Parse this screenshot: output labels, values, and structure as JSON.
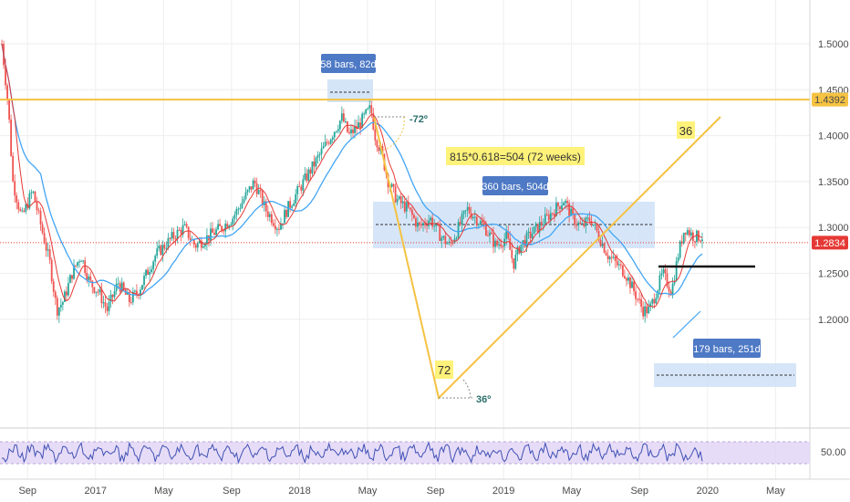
{
  "chart_data": {
    "type": "candlestick",
    "title": "",
    "xlabel": "",
    "ylabel": "",
    "grid": true,
    "x_tick_labels": [
      "Sep",
      "2017",
      "May",
      "Sep",
      "2018",
      "May",
      "Sep",
      "2019",
      "May",
      "Sep",
      "2020",
      "May"
    ],
    "y_ticks": [
      1.2,
      1.25,
      1.3,
      1.35,
      1.4,
      1.45,
      1.5
    ],
    "y_tick_labels": [
      "1.2000",
      "1.2500",
      "1.3000",
      "1.3500",
      "1.4000",
      "1.4500",
      "1.5000"
    ],
    "ylim": [
      1.165,
      1.535
    ],
    "price_path": [
      [
        0.0,
        1.5
      ],
      [
        0.3,
        1.43
      ],
      [
        0.5,
        1.35
      ],
      [
        0.9,
        1.31
      ],
      [
        1.4,
        1.34
      ],
      [
        1.8,
        1.3
      ],
      [
        2.2,
        1.26
      ],
      [
        2.5,
        1.21
      ],
      [
        2.8,
        1.22
      ],
      [
        3.2,
        1.25
      ],
      [
        3.6,
        1.27
      ],
      [
        4.0,
        1.24
      ],
      [
        4.4,
        1.23
      ],
      [
        4.8,
        1.21
      ],
      [
        5.3,
        1.24
      ],
      [
        5.8,
        1.22
      ],
      [
        6.2,
        1.23
      ],
      [
        6.6,
        1.25
      ],
      [
        7.0,
        1.27
      ],
      [
        7.4,
        1.28
      ],
      [
        7.8,
        1.29
      ],
      [
        8.3,
        1.3
      ],
      [
        8.8,
        1.28
      ],
      [
        9.4,
        1.29
      ],
      [
        10.0,
        1.3
      ],
      [
        10.5,
        1.31
      ],
      [
        11.0,
        1.33
      ],
      [
        11.5,
        1.35
      ],
      [
        12.0,
        1.32
      ],
      [
        12.6,
        1.3
      ],
      [
        13.0,
        1.32
      ],
      [
        13.5,
        1.34
      ],
      [
        14.0,
        1.36
      ],
      [
        14.5,
        1.38
      ],
      [
        15.0,
        1.4
      ],
      [
        15.5,
        1.42
      ],
      [
        15.8,
        1.4
      ],
      [
        16.2,
        1.41
      ],
      [
        16.5,
        1.42
      ],
      [
        16.8,
        1.43
      ],
      [
        17.0,
        1.4
      ],
      [
        17.3,
        1.38
      ],
      [
        17.6,
        1.35
      ],
      [
        18.0,
        1.33
      ],
      [
        18.5,
        1.32
      ],
      [
        19.0,
        1.3
      ],
      [
        19.5,
        1.31
      ],
      [
        20.0,
        1.29
      ],
      [
        20.4,
        1.28
      ],
      [
        20.8,
        1.3
      ],
      [
        21.2,
        1.32
      ],
      [
        21.6,
        1.31
      ],
      [
        22.0,
        1.3
      ],
      [
        22.5,
        1.28
      ],
      [
        23.0,
        1.29
      ],
      [
        23.3,
        1.26
      ],
      [
        23.6,
        1.28
      ],
      [
        24.0,
        1.29
      ],
      [
        24.4,
        1.3
      ],
      [
        24.8,
        1.31
      ],
      [
        25.2,
        1.32
      ],
      [
        25.6,
        1.33
      ],
      [
        26.0,
        1.31
      ],
      [
        26.4,
        1.3
      ],
      [
        26.8,
        1.31
      ],
      [
        27.2,
        1.29
      ],
      [
        27.6,
        1.27
      ],
      [
        28.0,
        1.26
      ],
      [
        28.4,
        1.25
      ],
      [
        28.8,
        1.23
      ],
      [
        29.2,
        1.21
      ],
      [
        29.5,
        1.21
      ],
      [
        29.8,
        1.23
      ],
      [
        30.1,
        1.25
      ],
      [
        30.5,
        1.23
      ],
      [
        30.8,
        1.27
      ],
      [
        31.1,
        1.3
      ],
      [
        31.5,
        1.29
      ],
      [
        31.9,
        1.29
      ]
    ],
    "current_price": 1.2834,
    "current_price_label": "1.2834",
    "horizontal_level": 1.4392,
    "horizontal_level_label": "1.4392",
    "black_level": 1.2575,
    "ma_color_fast": "#e53935",
    "ma_color_slow": "#42a5f5",
    "up_color": "#26a69a",
    "down_color": "#ef5350",
    "annotations": {
      "box_58_label": "58 bars, 82d",
      "box_360_label": "360 bars, 504d",
      "box_179_label": "179 bars, 251d",
      "angle_top": "-72º",
      "angle_bottom": "36º",
      "fib_label": "815*0.618=504 (72 weeks)",
      "label_36": "36",
      "label_72": "72"
    },
    "rsi_panel": {
      "tick_label": "50.00",
      "line_color": "#3f51b5",
      "band_color": "#e1d3f5"
    }
  }
}
